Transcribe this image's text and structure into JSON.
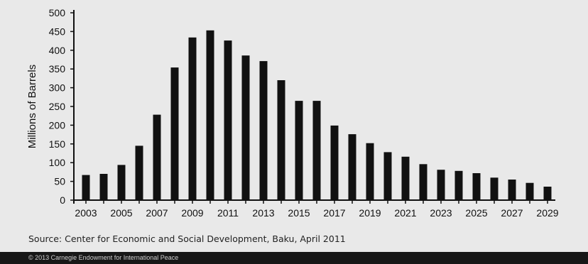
{
  "chart_data": {
    "type": "bar",
    "categories": [
      "2003",
      "2004",
      "2005",
      "2006",
      "2007",
      "2008",
      "2009",
      "2010",
      "2011",
      "2012",
      "2013",
      "2014",
      "2015",
      "2016",
      "2017",
      "2018",
      "2019",
      "2020",
      "2021",
      "2022",
      "2023",
      "2024",
      "2025",
      "2026",
      "2027",
      "2028",
      "2029"
    ],
    "values": [
      67,
      70,
      94,
      145,
      228,
      354,
      434,
      453,
      426,
      386,
      371,
      320,
      265,
      265,
      199,
      176,
      152,
      128,
      116,
      96,
      81,
      78,
      72,
      60,
      55,
      46,
      36
    ],
    "ylabel": "Millions of Barrels",
    "xlabel": "",
    "ylim": [
      0,
      500
    ],
    "yticks": [
      "0",
      "50",
      "100",
      "150",
      "200",
      "250",
      "300",
      "350",
      "400",
      "450",
      "500"
    ],
    "xtick_labels": [
      "2003",
      "2005",
      "2007",
      "2009",
      "2011",
      "2013",
      "2015",
      "2017",
      "2019",
      "2021",
      "2023",
      "2025",
      "2027",
      "2029"
    ],
    "grid": false,
    "colors": {
      "bar": "#111111",
      "background": "#e9e9e9",
      "axis": "#111111"
    }
  },
  "source_text": "Source: Center for Economic and Social Development, Baku, April 2011",
  "footer_text": "© 2013 Carnegie Endowment for International Peace"
}
